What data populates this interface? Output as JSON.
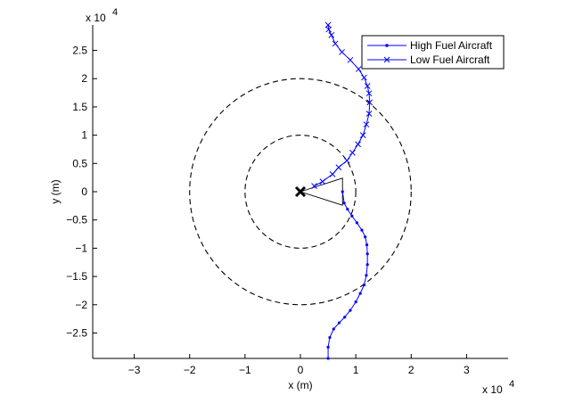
{
  "chart_data": {
    "type": "line",
    "title": "",
    "xlabel": "x (m)",
    "ylabel": "y (m)",
    "x_multiplier_label": "x 10",
    "x_multiplier_exp": "4",
    "y_multiplier_label": "x 10",
    "y_multiplier_exp": "4",
    "xlim": [
      -37500,
      37500
    ],
    "ylim": [
      -29500,
      29500
    ],
    "xticks": [
      -30000,
      -20000,
      -10000,
      0,
      10000,
      20000,
      30000
    ],
    "xtick_labels": [
      "−3",
      "−2",
      "−1",
      "0",
      "1",
      "2",
      "3"
    ],
    "yticks": [
      -25000,
      -20000,
      -15000,
      -10000,
      -5000,
      0,
      5000,
      10000,
      15000,
      20000,
      25000
    ],
    "ytick_labels": [
      "−2.5",
      "−2",
      "−1.5",
      "−1",
      "−0.5",
      "0",
      "0.5",
      "1",
      "1.5",
      "2",
      "2.5"
    ],
    "grid": false,
    "legend_position": "top-right",
    "colors": {
      "series": "#0000ff",
      "circles": "#000000",
      "center": "#000000"
    },
    "series": [
      {
        "name": "High Fuel Aircraft",
        "marker": "dot",
        "x": [
          5000,
          5000,
          5300,
          6000,
          7000,
          8000,
          9000,
          10000,
          10800,
          11500,
          11900,
          12100,
          12100,
          12000,
          11700,
          11100,
          10200,
          9300,
          8500,
          7900,
          7600
        ],
        "y": [
          -29500,
          -27500,
          -25800,
          -24300,
          -23200,
          -22200,
          -21000,
          -19500,
          -18000,
          -16500,
          -14800,
          -12900,
          -11000,
          -9400,
          -8000,
          -6800,
          -5500,
          -4300,
          -3100,
          -2000,
          0
        ]
      },
      {
        "name": "Low Fuel Aircraft",
        "marker": "x",
        "x": [
          2500,
          4000,
          5800,
          6900,
          8400,
          9400,
          10400,
          11300,
          11900,
          12400,
          12500,
          12400,
          12100,
          11500,
          10500,
          9000,
          7500,
          6300,
          5600,
          5100,
          5000
        ],
        "y": [
          1000,
          1800,
          3100,
          4300,
          5500,
          6900,
          8400,
          10000,
          11900,
          13800,
          15800,
          17400,
          18700,
          20200,
          21700,
          23300,
          24700,
          26200,
          27700,
          28700,
          29500
        ]
      }
    ],
    "circles": [
      {
        "center_x": 0,
        "center_y": 0,
        "radius": 10000
      },
      {
        "center_x": 0,
        "center_y": 0,
        "radius": 20000
      }
    ],
    "center_point": {
      "x": 0,
      "y": 0
    },
    "sector": {
      "apex": [
        0,
        0
      ],
      "points": [
        [
          7600,
          2400
        ],
        [
          7600,
          -2400
        ]
      ]
    }
  }
}
